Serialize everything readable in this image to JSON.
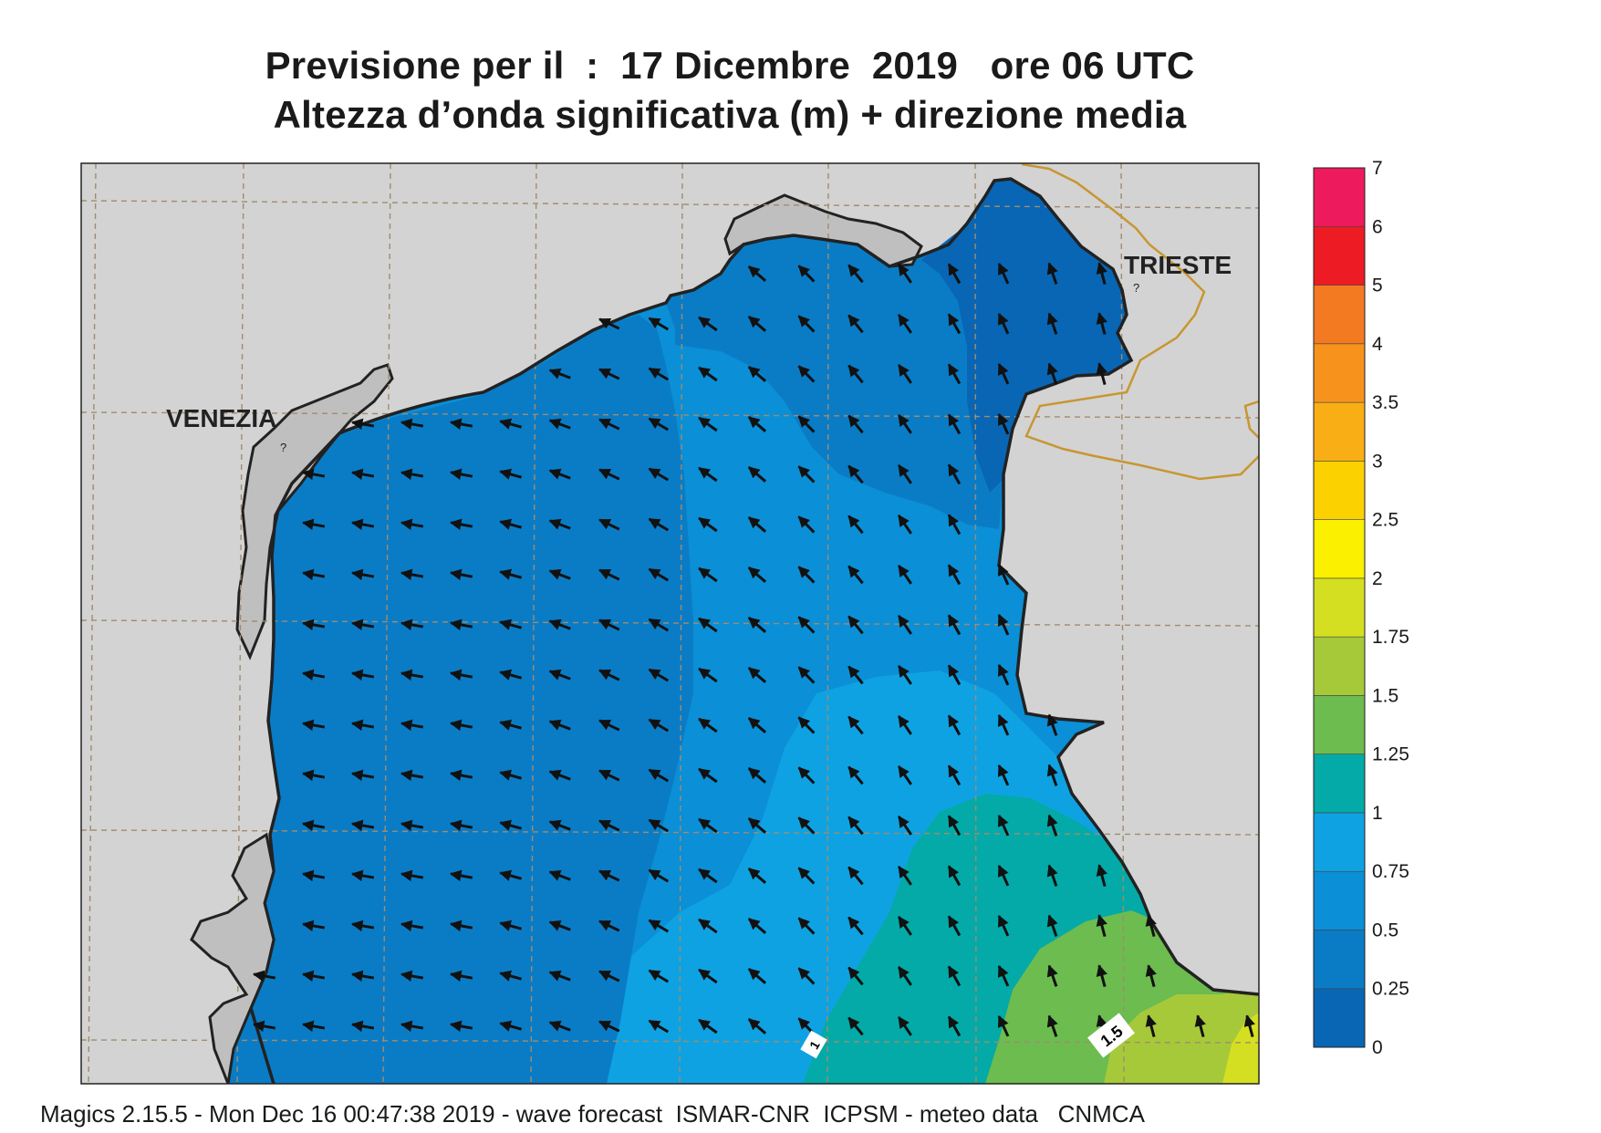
{
  "header": {
    "title_line1": "Previsione per il  :  17 Dicembre  2019   ore 06 UTC",
    "title_line2": "Altezza d’onda significativa (m) + direzione media"
  },
  "map": {
    "variable": "significant wave height",
    "units": "m",
    "land_color": "#d3d3d3",
    "coast_color": "#222222",
    "border_color": "#c89632",
    "grid_color": "#a08c6e",
    "places": [
      {
        "name": "VENEZIA",
        "icon": "city-marker-icon"
      },
      {
        "name": "TRIESTE",
        "icon": "city-marker-icon"
      }
    ],
    "contour_labels": [
      "1.5",
      "1"
    ],
    "arrow_icon": "wave-direction-arrow-icon",
    "mean_direction": "north-west"
  },
  "legend": {
    "levels": [
      {
        "from": "0",
        "to": "0.25",
        "color": "#0866b4"
      },
      {
        "from": "0.25",
        "to": "0.5",
        "color": "#0a7cc6"
      },
      {
        "from": "0.5",
        "to": "0.75",
        "color": "#0b8fd6"
      },
      {
        "from": "0.75",
        "to": "1",
        "color": "#0fa2e2"
      },
      {
        "from": "1",
        "to": "1.25",
        "color": "#03aaa7"
      },
      {
        "from": "1.25",
        "to": "1.5",
        "color": "#6cbc4f"
      },
      {
        "from": "1.5",
        "to": "1.75",
        "color": "#a6c93a"
      },
      {
        "from": "1.75",
        "to": "2",
        "color": "#d5df22"
      },
      {
        "from": "2",
        "to": "2.5",
        "color": "#fbf000"
      },
      {
        "from": "2.5",
        "to": "3",
        "color": "#fbd200"
      },
      {
        "from": "3",
        "to": "3.5",
        "color": "#f9ae16"
      },
      {
        "from": "3.5",
        "to": "4",
        "color": "#f7931d"
      },
      {
        "from": "4",
        "to": "5",
        "color": "#f47a22"
      },
      {
        "from": "5",
        "to": "6",
        "color": "#ed1c24"
      },
      {
        "from": "6",
        "to": "7",
        "color": "#ed1a5d"
      }
    ],
    "tick_labels": [
      "0",
      "0.25",
      "0.5",
      "0.75",
      "1",
      "1.25",
      "1.5",
      "1.75",
      "2",
      "2.5",
      "3",
      "3.5",
      "4",
      "5",
      "6",
      "7"
    ]
  },
  "footer": {
    "text": "Magics 2.15.5 - Mon Dec 16 00:47:38 2019 - wave forecast  ISMAR-CNR  ICPSM - meteo data   CNMCA"
  }
}
